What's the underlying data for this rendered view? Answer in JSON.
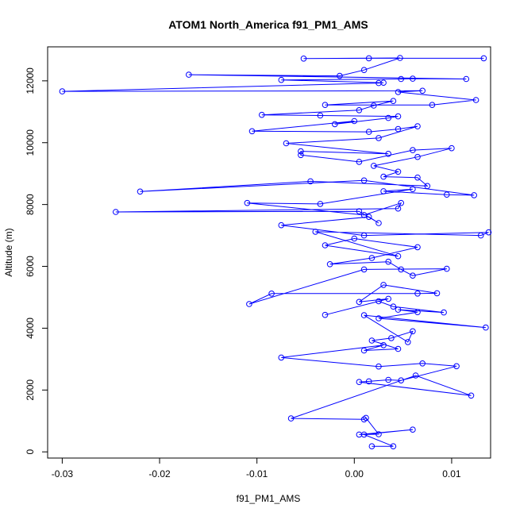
{
  "chart_data": {
    "type": "scatter",
    "title": "ATOM1 North_America f91_PM1_AMS",
    "xlabel": "f91_PM1_AMS",
    "ylabel": "Altitude (m)",
    "xlim": [
      -0.0315,
      0.014
    ],
    "ylim": [
      -200,
      13100
    ],
    "xticks": [
      -0.03,
      -0.02,
      -0.01,
      0.0,
      0.01
    ],
    "xtick_labels": [
      "-0.03",
      "-0.02",
      "-0.01",
      "0.00",
      "0.01"
    ],
    "yticks": [
      0,
      2000,
      4000,
      6000,
      8000,
      10000,
      12000
    ],
    "ytick_labels": [
      "0",
      "2000",
      "4000",
      "6000",
      "8000",
      "10000",
      "12000"
    ],
    "grid": false,
    "legend": "none",
    "color": "#0000ff",
    "marker": "open-circle",
    "connected": true,
    "points": [
      [
        0.0018,
        180
      ],
      [
        0.004,
        180
      ],
      [
        0.001,
        560
      ],
      [
        0.006,
        720
      ],
      [
        0.0005,
        560
      ],
      [
        0.0025,
        570
      ],
      [
        0.0012,
        1100
      ],
      [
        0.001,
        1050
      ],
      [
        -0.0065,
        1080
      ],
      [
        0.0063,
        2470
      ],
      [
        0.012,
        1820
      ],
      [
        0.0005,
        2260
      ],
      [
        0.0015,
        2280
      ],
      [
        0.0035,
        2330
      ],
      [
        0.0048,
        2310
      ],
      [
        0.0105,
        2770
      ],
      [
        0.007,
        2860
      ],
      [
        0.0025,
        2760
      ],
      [
        -0.0075,
        3050
      ],
      [
        0.003,
        3450
      ],
      [
        0.001,
        3280
      ],
      [
        0.0045,
        3330
      ],
      [
        0.0018,
        3600
      ],
      [
        0.0038,
        3680
      ],
      [
        0.006,
        3900
      ],
      [
        0.0055,
        3550
      ],
      [
        0.001,
        4420
      ],
      [
        0.0135,
        4020
      ],
      [
        0.0025,
        4320
      ],
      [
        0.0065,
        4520
      ],
      [
        0.0045,
        4600
      ],
      [
        0.0092,
        4510
      ],
      [
        0.004,
        4700
      ],
      [
        0.0025,
        4870
      ],
      [
        -0.003,
        4430
      ],
      [
        0.0035,
        4950
      ],
      [
        0.0005,
        4850
      ],
      [
        0.003,
        5400
      ],
      [
        0.0085,
        5130
      ],
      [
        0.0065,
        5120
      ],
      [
        -0.0085,
        5120
      ],
      [
        -0.0108,
        4780
      ],
      [
        0.001,
        5900
      ],
      [
        0.0095,
        5920
      ],
      [
        0.006,
        5700
      ],
      [
        0.0048,
        5900
      ],
      [
        0.0035,
        6150
      ],
      [
        -0.0025,
        6070
      ],
      [
        0.0018,
        6270
      ],
      [
        0.0065,
        6620
      ],
      [
        0.0,
        6900
      ],
      [
        -0.003,
        6680
      ],
      [
        0.0045,
        6330
      ],
      [
        -0.004,
        7120
      ],
      [
        0.013,
        7000
      ],
      [
        0.0138,
        7100
      ],
      [
        0.001,
        7000
      ],
      [
        -0.0075,
        7330
      ],
      [
        0.0015,
        7600
      ],
      [
        0.0025,
        7400
      ],
      [
        0.0005,
        7780
      ],
      [
        -0.0245,
        7760
      ],
      [
        0.0045,
        7870
      ],
      [
        0.0048,
        8050
      ],
      [
        0.001,
        7660
      ],
      [
        -0.011,
        8050
      ],
      [
        -0.0035,
        8020
      ],
      [
        0.006,
        8500
      ],
      [
        0.003,
        8430
      ],
      [
        0.0095,
        8320
      ],
      [
        0.0123,
        8300
      ],
      [
        0.001,
        8780
      ],
      [
        -0.022,
        8420
      ],
      [
        -0.0045,
        8750
      ],
      [
        0.0075,
        8600
      ],
      [
        0.0065,
        8870
      ],
      [
        0.003,
        8900
      ],
      [
        0.0045,
        9060
      ],
      [
        0.002,
        9250
      ],
      [
        0.0065,
        9540
      ],
      [
        0.01,
        9820
      ],
      [
        0.006,
        9760
      ],
      [
        0.0005,
        9380
      ],
      [
        -0.0055,
        9600
      ],
      [
        -0.0055,
        9720
      ],
      [
        0.0035,
        9640
      ],
      [
        -0.007,
        9980
      ],
      [
        0.0025,
        10150
      ],
      [
        0.0065,
        10530
      ],
      [
        0.0045,
        10440
      ],
      [
        0.0015,
        10350
      ],
      [
        -0.0105,
        10370
      ],
      [
        0.0,
        10700
      ],
      [
        -0.002,
        10600
      ],
      [
        0.0035,
        10800
      ],
      [
        0.0045,
        10850
      ],
      [
        -0.0035,
        10880
      ],
      [
        -0.0095,
        10900
      ],
      [
        0.0005,
        11050
      ],
      [
        0.002,
        11200
      ],
      [
        0.004,
        11350
      ],
      [
        -0.003,
        11220
      ],
      [
        0.008,
        11220
      ],
      [
        0.0125,
        11380
      ],
      [
        0.0045,
        11640
      ],
      [
        0.007,
        11680
      ],
      [
        -0.03,
        11660
      ],
      [
        0.0025,
        11930
      ],
      [
        0.003,
        11940
      ],
      [
        -0.0075,
        12030
      ],
      [
        0.0048,
        12060
      ],
      [
        0.006,
        12070
      ],
      [
        0.0115,
        12060
      ],
      [
        -0.017,
        12200
      ],
      [
        -0.0015,
        12160
      ],
      [
        0.001,
        12350
      ],
      [
        0.0047,
        12740
      ],
      [
        -0.0052,
        12720
      ],
      [
        0.0015,
        12730
      ],
      [
        0.0133,
        12730
      ]
    ]
  }
}
